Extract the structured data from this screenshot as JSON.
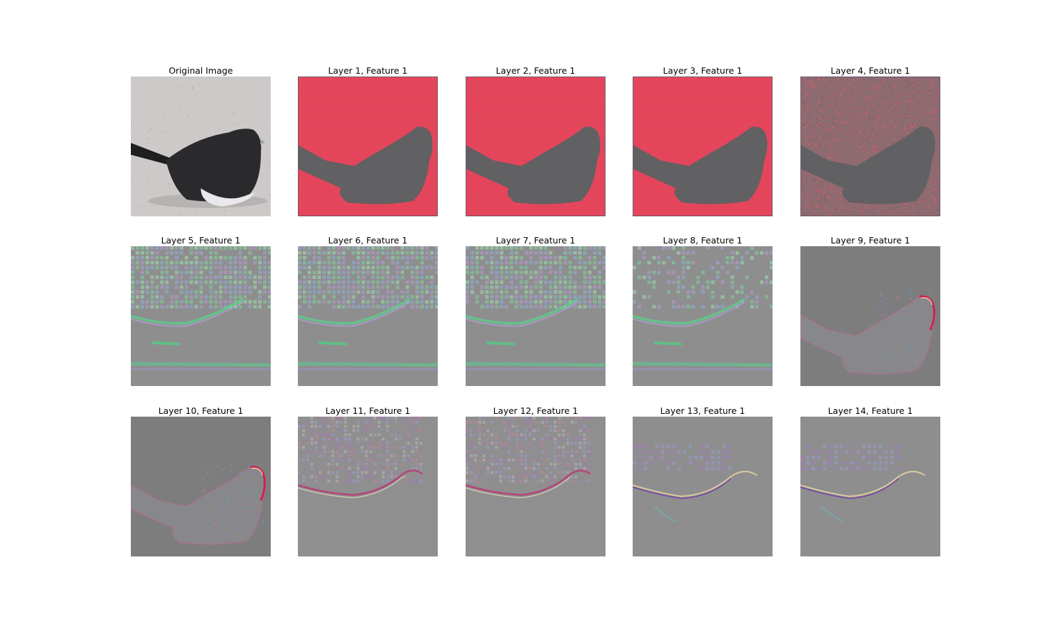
{
  "panels": [
    {
      "title": "Original Image",
      "kind": "original"
    },
    {
      "title": "Layer 1, Feature 1",
      "kind": "red"
    },
    {
      "title": "Layer 2, Feature 1",
      "kind": "red"
    },
    {
      "title": "Layer 3, Feature 1",
      "kind": "red"
    },
    {
      "title": "Layer 4, Feature 1",
      "kind": "redspeckle"
    },
    {
      "title": "Layer 5, Feature 1",
      "kind": "greengrid"
    },
    {
      "title": "Layer 6, Feature 1",
      "kind": "greengrid"
    },
    {
      "title": "Layer 7, Feature 1",
      "kind": "greengrid"
    },
    {
      "title": "Layer 8, Feature 1",
      "kind": "greensparse"
    },
    {
      "title": "Layer 9, Feature 1",
      "kind": "birdedge"
    },
    {
      "title": "Layer 10, Feature 1",
      "kind": "birdedge"
    },
    {
      "title": "Layer 11, Feature 1",
      "kind": "purplegrid"
    },
    {
      "title": "Layer 12, Feature 1",
      "kind": "purplegrid"
    },
    {
      "title": "Layer 13, Feature 1",
      "kind": "faint"
    },
    {
      "title": "Layer 14, Feature 1",
      "kind": "faint"
    }
  ]
}
